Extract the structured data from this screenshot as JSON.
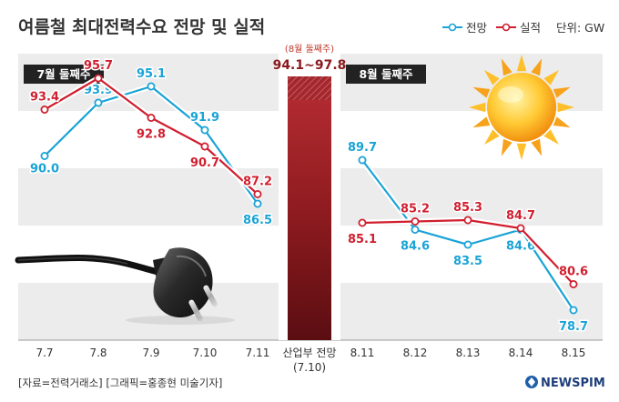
{
  "header": {
    "title": "여름철 최대전력수요 전망 및 실적",
    "legend_forecast": "전망",
    "legend_actual": "실적",
    "unit_label": "단위: GW"
  },
  "colors": {
    "forecast": "#1aa3d6",
    "actual": "#d01f2f",
    "band": "#ececec",
    "center_bar": "#8b1a1e",
    "text": "#333333"
  },
  "center": {
    "note": "(8월 둘째주)",
    "range": "94.1~97.8",
    "label_line1": "산업부 전망",
    "label_line2": "(7.10)"
  },
  "footer": {
    "source": "[자료=전력거래소] [그래픽=홍종현 미술기자]",
    "brand": "NEWSPIM"
  },
  "chart_data": [
    {
      "type": "line",
      "panel_label": "7월 둘째주",
      "categories": [
        "7.7",
        "7.8",
        "7.9",
        "7.10",
        "7.11"
      ],
      "series": [
        {
          "name": "전망",
          "values": [
            90.0,
            93.9,
            95.1,
            91.9,
            86.5
          ],
          "labels": [
            "90.0",
            "93.9",
            "95.1",
            "91.9",
            "86.5"
          ]
        },
        {
          "name": "실적",
          "values": [
            93.4,
            95.7,
            92.8,
            90.7,
            87.2
          ],
          "labels": [
            "93.4",
            "95.7",
            "92.8",
            "90.7",
            "87.2"
          ]
        }
      ],
      "ylim": [
        76.5,
        97.5
      ],
      "xlabel": "",
      "ylabel": "",
      "grid": "horizontal bands"
    },
    {
      "type": "line",
      "panel_label": "8월 둘째주",
      "categories": [
        "8.11",
        "8.12",
        "8.13",
        "8.14",
        "8.15"
      ],
      "series": [
        {
          "name": "전망",
          "values": [
            89.7,
            84.6,
            83.5,
            84.6,
            78.7
          ],
          "labels": [
            "89.7",
            "84.6",
            "83.5",
            "84.6",
            "78.7"
          ]
        },
        {
          "name": "실적",
          "values": [
            85.1,
            85.2,
            85.3,
            84.7,
            80.6
          ],
          "labels": [
            "85.1",
            "85.2",
            "85.3",
            "84.7",
            "80.6"
          ]
        }
      ],
      "ylim": [
        76.5,
        97.5
      ],
      "xlabel": "",
      "ylabel": "",
      "grid": "horizontal bands"
    }
  ]
}
